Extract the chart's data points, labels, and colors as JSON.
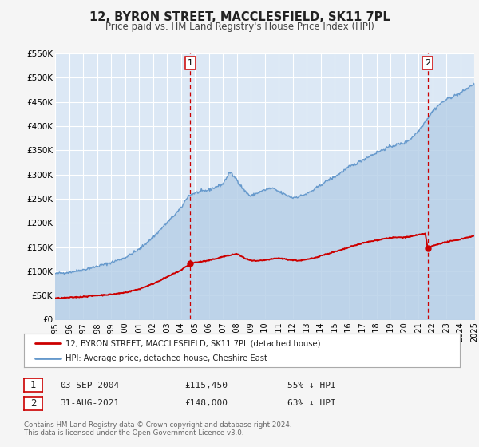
{
  "title": "12, BYRON STREET, MACCLESFIELD, SK11 7PL",
  "subtitle": "Price paid vs. HM Land Registry's House Price Index (HPI)",
  "ylim": [
    0,
    550000
  ],
  "yticks": [
    0,
    50000,
    100000,
    150000,
    200000,
    250000,
    300000,
    350000,
    400000,
    450000,
    500000,
    550000
  ],
  "ytick_labels": [
    "£0",
    "£50K",
    "£100K",
    "£150K",
    "£200K",
    "£250K",
    "£300K",
    "£350K",
    "£400K",
    "£450K",
    "£500K",
    "£550K"
  ],
  "fig_bg_color": "#f5f5f5",
  "plot_bg_color": "#dce8f5",
  "grid_color": "#ffffff",
  "hpi_line_color": "#6699cc",
  "hpi_fill_color": "#b8d0e8",
  "price_color": "#cc0000",
  "marker_color": "#cc0000",
  "marker1_x": 2004.67,
  "marker1_y": 115450,
  "marker2_x": 2021.66,
  "marker2_y": 148000,
  "vline_color": "#cc0000",
  "annotation1": {
    "label": "1",
    "date": "03-SEP-2004",
    "price": "£115,450",
    "pct": "55% ↓ HPI"
  },
  "annotation2": {
    "label": "2",
    "date": "31-AUG-2021",
    "price": "£148,000",
    "pct": "63% ↓ HPI"
  },
  "legend_line1": "12, BYRON STREET, MACCLESFIELD, SK11 7PL (detached house)",
  "legend_line2": "HPI: Average price, detached house, Cheshire East",
  "footnote": "Contains HM Land Registry data © Crown copyright and database right 2024.\nThis data is licensed under the Open Government Licence v3.0.",
  "xmin": 1995,
  "xmax": 2025,
  "xticks": [
    1995,
    1996,
    1997,
    1998,
    1999,
    2000,
    2001,
    2002,
    2003,
    2004,
    2005,
    2006,
    2007,
    2008,
    2009,
    2010,
    2011,
    2012,
    2013,
    2014,
    2015,
    2016,
    2017,
    2018,
    2019,
    2020,
    2021,
    2022,
    2023,
    2024,
    2025
  ],
  "hpi_keypoints": [
    [
      1995.0,
      95000
    ],
    [
      1996.0,
      98000
    ],
    [
      1997.0,
      103000
    ],
    [
      1998.0,
      110000
    ],
    [
      1999.0,
      118000
    ],
    [
      2000.0,
      128000
    ],
    [
      2001.0,
      145000
    ],
    [
      2002.0,
      170000
    ],
    [
      2003.0,
      200000
    ],
    [
      2004.0,
      230000
    ],
    [
      2004.5,
      255000
    ],
    [
      2005.0,
      262000
    ],
    [
      2006.0,
      268000
    ],
    [
      2007.0,
      280000
    ],
    [
      2007.5,
      305000
    ],
    [
      2008.0,
      290000
    ],
    [
      2008.5,
      268000
    ],
    [
      2009.0,
      255000
    ],
    [
      2009.5,
      262000
    ],
    [
      2010.0,
      268000
    ],
    [
      2010.5,
      272000
    ],
    [
      2011.0,
      265000
    ],
    [
      2011.5,
      258000
    ],
    [
      2012.0,
      252000
    ],
    [
      2012.5,
      255000
    ],
    [
      2013.0,
      260000
    ],
    [
      2013.5,
      268000
    ],
    [
      2014.0,
      278000
    ],
    [
      2014.5,
      288000
    ],
    [
      2015.0,
      295000
    ],
    [
      2015.5,
      305000
    ],
    [
      2016.0,
      315000
    ],
    [
      2016.5,
      322000
    ],
    [
      2017.0,
      330000
    ],
    [
      2017.5,
      338000
    ],
    [
      2018.0,
      345000
    ],
    [
      2018.5,
      352000
    ],
    [
      2019.0,
      358000
    ],
    [
      2019.5,
      362000
    ],
    [
      2020.0,
      365000
    ],
    [
      2020.5,
      375000
    ],
    [
      2021.0,
      390000
    ],
    [
      2021.5,
      410000
    ],
    [
      2022.0,
      430000
    ],
    [
      2022.5,
      445000
    ],
    [
      2023.0,
      455000
    ],
    [
      2023.5,
      462000
    ],
    [
      2024.0,
      468000
    ],
    [
      2024.5,
      478000
    ],
    [
      2025.0,
      488000
    ]
  ],
  "price_keypoints": [
    [
      1995.0,
      44000
    ],
    [
      1996.0,
      45500
    ],
    [
      1997.0,
      47500
    ],
    [
      1998.0,
      50000
    ],
    [
      1999.0,
      52000
    ],
    [
      2000.0,
      56000
    ],
    [
      2001.0,
      63000
    ],
    [
      2002.0,
      74000
    ],
    [
      2003.0,
      88000
    ],
    [
      2004.0,
      102000
    ],
    [
      2004.67,
      115450
    ],
    [
      2005.0,
      118000
    ],
    [
      2006.0,
      122000
    ],
    [
      2007.0,
      130000
    ],
    [
      2008.0,
      136000
    ],
    [
      2008.5,
      128000
    ],
    [
      2009.0,
      122000
    ],
    [
      2009.5,
      121000
    ],
    [
      2010.0,
      123000
    ],
    [
      2010.5,
      125000
    ],
    [
      2011.0,
      127000
    ],
    [
      2011.5,
      125000
    ],
    [
      2012.0,
      123000
    ],
    [
      2012.5,
      122000
    ],
    [
      2013.0,
      124000
    ],
    [
      2013.5,
      127000
    ],
    [
      2014.0,
      132000
    ],
    [
      2014.5,
      136000
    ],
    [
      2015.0,
      140000
    ],
    [
      2015.5,
      144000
    ],
    [
      2016.0,
      149000
    ],
    [
      2016.5,
      154000
    ],
    [
      2017.0,
      158000
    ],
    [
      2017.5,
      161000
    ],
    [
      2018.0,
      164000
    ],
    [
      2018.5,
      167000
    ],
    [
      2019.0,
      169000
    ],
    [
      2019.5,
      170000
    ],
    [
      2020.0,
      170000
    ],
    [
      2020.5,
      172000
    ],
    [
      2021.0,
      175000
    ],
    [
      2021.5,
      178000
    ],
    [
      2021.66,
      148000
    ],
    [
      2022.0,
      152000
    ],
    [
      2022.5,
      157000
    ],
    [
      2023.0,
      160000
    ],
    [
      2023.5,
      163000
    ],
    [
      2024.0,
      166000
    ],
    [
      2024.5,
      170000
    ],
    [
      2025.0,
      173000
    ]
  ]
}
